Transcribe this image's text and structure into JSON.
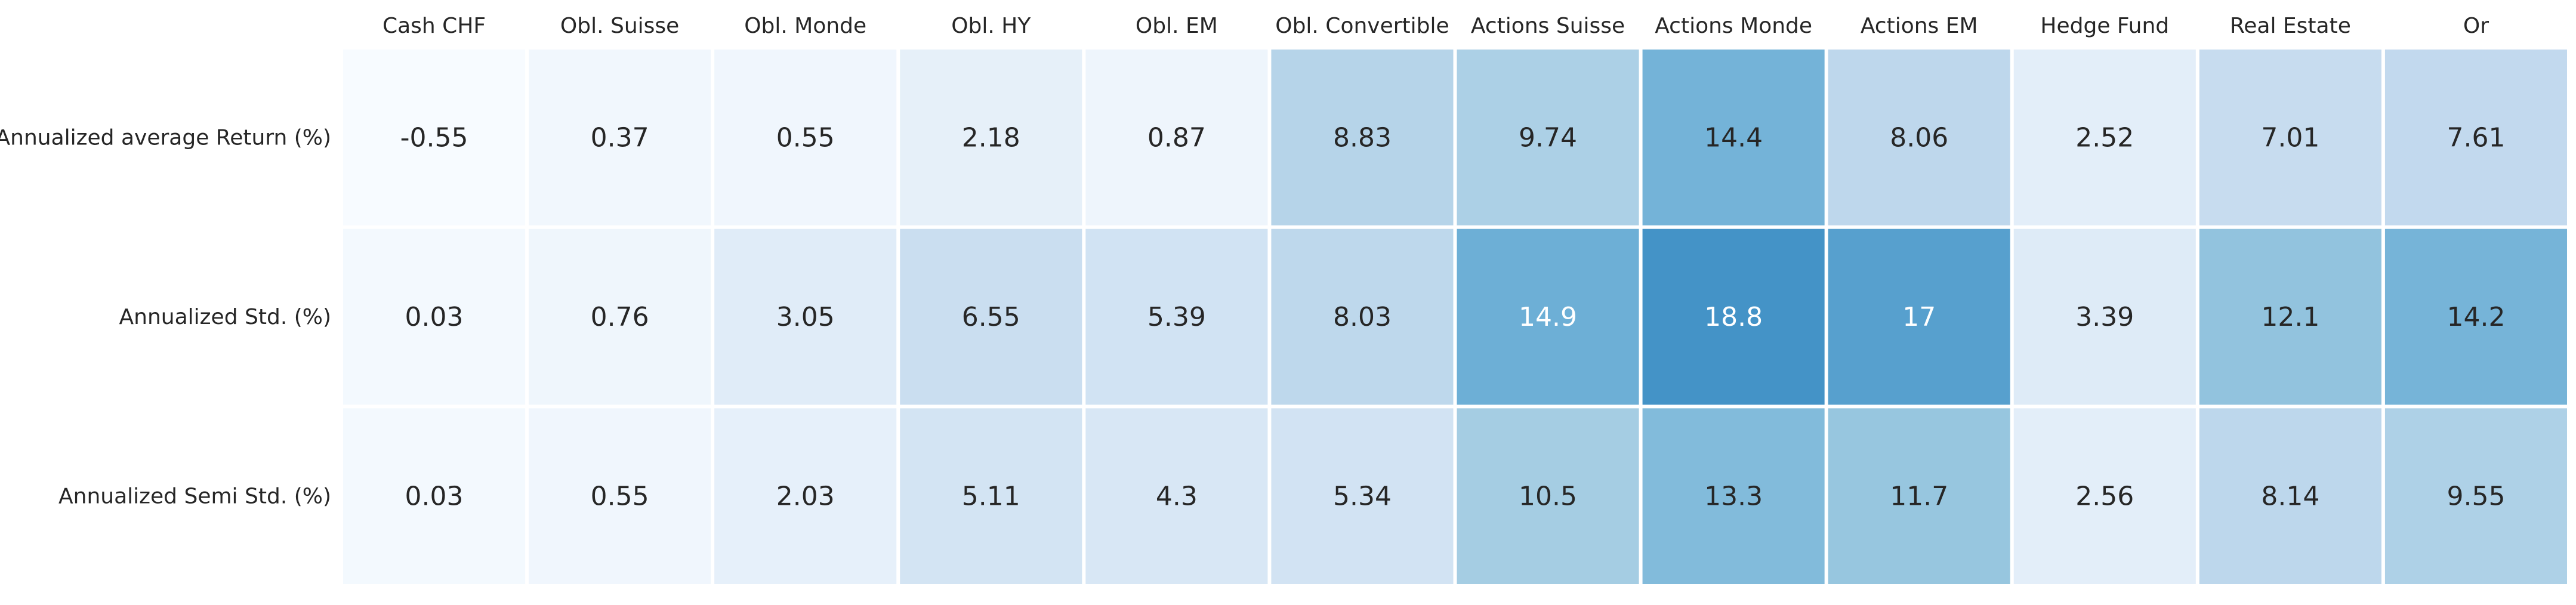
{
  "chart_data": {
    "type": "heatmap",
    "title": "",
    "xlabel": "",
    "ylabel": "",
    "columns": [
      "Cash CHF",
      "Obl. Suisse",
      "Obl. Monde",
      "Obl. HY",
      "Obl. EM",
      "Obl. Convertible",
      "Actions Suisse",
      "Actions Monde",
      "Actions EM",
      "Hedge Fund",
      "Real Estate",
      "Or"
    ],
    "rows": [
      "Annualized average Return (%)",
      "Annualized Std. (%)",
      "Annualized Semi Std. (%)"
    ],
    "values": [
      [
        -0.55,
        0.37,
        0.55,
        2.18,
        0.87,
        8.83,
        9.74,
        14.4,
        8.06,
        2.52,
        7.01,
        7.61
      ],
      [
        0.03,
        0.76,
        3.05,
        6.55,
        5.39,
        8.03,
        14.9,
        18.8,
        17,
        3.39,
        12.1,
        14.2
      ],
      [
        0.03,
        0.55,
        2.03,
        5.11,
        4.3,
        5.34,
        10.5,
        13.3,
        11.7,
        2.56,
        8.14,
        9.55
      ]
    ],
    "value_labels": [
      [
        "-0.55",
        "0.37",
        "0.55",
        "2.18",
        "0.87",
        "8.83",
        "9.74",
        "14.4",
        "8.06",
        "2.52",
        "7.01",
        "7.61"
      ],
      [
        "0.03",
        "0.76",
        "3.05",
        "6.55",
        "5.39",
        "8.03",
        "14.9",
        "18.8",
        "17",
        "3.39",
        "12.1",
        "14.2"
      ],
      [
        "0.03",
        "0.55",
        "2.03",
        "5.11",
        "4.3",
        "5.34",
        "10.5",
        "13.3",
        "11.7",
        "2.56",
        "8.14",
        "9.55"
      ]
    ],
    "colormap": "Blues",
    "vmin": -0.55,
    "vmax": 18.8,
    "colorbar": false,
    "grid": false,
    "x_tick_position": "top",
    "cell_border_color": "#ffffff"
  }
}
